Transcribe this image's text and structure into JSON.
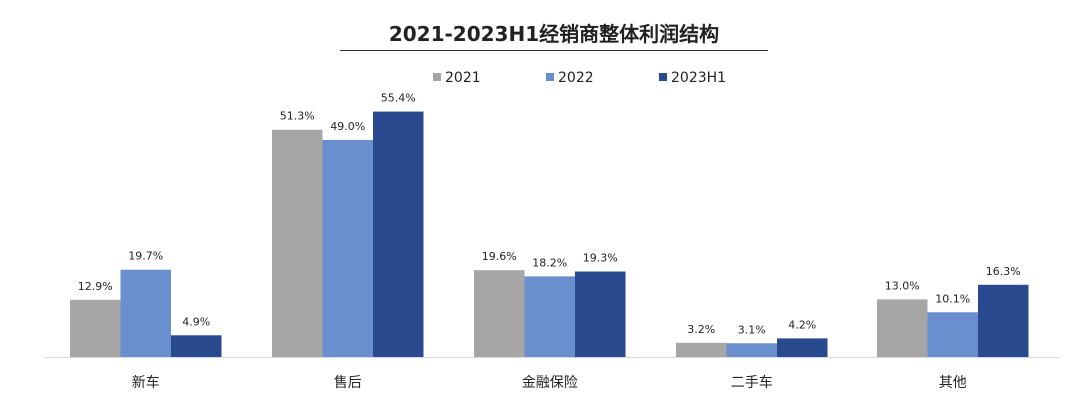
{
  "chart_data": {
    "type": "bar",
    "title": "2021-2023H1经销商整体利润结构",
    "categories": [
      "新车",
      "售后",
      "金融保险",
      "二手车",
      "其他"
    ],
    "series": [
      {
        "name": "2021",
        "values": [
          12.9,
          51.3,
          19.6,
          3.2,
          13.0
        ],
        "labels": [
          "12.9%",
          "51.3%",
          "19.6%",
          "3.2%",
          "13.0%"
        ],
        "color": "#a6a6a6"
      },
      {
        "name": "2022",
        "values": [
          19.7,
          49.0,
          18.2,
          3.1,
          10.1
        ],
        "labels": [
          "19.7%",
          "49.0%",
          "18.2%",
          "3.1%",
          "10.1%"
        ],
        "color": "#6a8fcf"
      },
      {
        "name": "2023H1",
        "values": [
          4.9,
          55.4,
          19.3,
          4.2,
          16.3
        ],
        "labels": [
          "4.9%",
          "55.4%",
          "19.3%",
          "4.2%",
          "16.3%"
        ],
        "color": "#2a4a8f"
      }
    ],
    "unit": "%",
    "ylim": [
      0,
      60
    ],
    "grid": false,
    "legend": "top-center"
  }
}
